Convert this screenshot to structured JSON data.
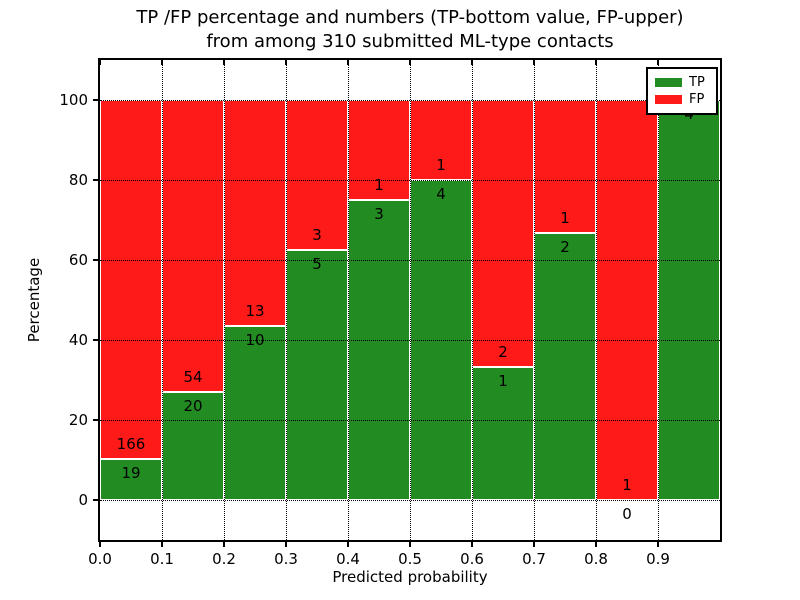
{
  "chart_data": {
    "type": "bar",
    "stacked": true,
    "title_line1": "TP /FP percentage and numbers (TP-bottom value, FP-upper)",
    "title_line2": "from among 310 submitted ML-type contacts",
    "xlabel": "Predicted probability",
    "ylabel": "Percentage",
    "total_contacts": 310,
    "xlim": [
      0.0,
      1.0
    ],
    "ylim": [
      -10,
      110
    ],
    "grid": true,
    "legend_position": "upper right",
    "yticks": [
      0,
      20,
      40,
      60,
      80,
      100
    ],
    "xtick_labels": [
      "0.0",
      "0.1",
      "0.2",
      "0.3",
      "0.4",
      "0.5",
      "0.6",
      "0.7",
      "0.8",
      "0.9"
    ],
    "colors": {
      "tp": "#228b22",
      "fp": "#ff1a1a"
    },
    "series": [
      {
        "name": "TP",
        "color": "#228b22",
        "position": "bottom"
      },
      {
        "name": "FP",
        "color": "#ff1a1a",
        "position": "top"
      }
    ],
    "bins": [
      {
        "range": [
          0.0,
          0.1
        ],
        "tp": 19,
        "fp": 166,
        "tp_pct": 10.27
      },
      {
        "range": [
          0.1,
          0.2
        ],
        "tp": 20,
        "fp": 54,
        "tp_pct": 27.03
      },
      {
        "range": [
          0.2,
          0.3
        ],
        "tp": 10,
        "fp": 13,
        "tp_pct": 43.48
      },
      {
        "range": [
          0.3,
          0.4
        ],
        "tp": 5,
        "fp": 3,
        "tp_pct": 62.5
      },
      {
        "range": [
          0.4,
          0.5
        ],
        "tp": 3,
        "fp": 1,
        "tp_pct": 75.0
      },
      {
        "range": [
          0.5,
          0.6
        ],
        "tp": 4,
        "fp": 1,
        "tp_pct": 80.0
      },
      {
        "range": [
          0.6,
          0.7
        ],
        "tp": 1,
        "fp": 2,
        "tp_pct": 33.33
      },
      {
        "range": [
          0.7,
          0.8
        ],
        "tp": 2,
        "fp": 1,
        "tp_pct": 66.67
      },
      {
        "range": [
          0.8,
          0.9
        ],
        "tp": 0,
        "fp": 1,
        "tp_pct": 0.0
      },
      {
        "range": [
          0.9,
          1.0
        ],
        "tp": 4,
        "fp": 0,
        "tp_pct": 100.0
      }
    ]
  },
  "legend": {
    "items": [
      {
        "label": "TP"
      },
      {
        "label": "FP"
      }
    ]
  }
}
